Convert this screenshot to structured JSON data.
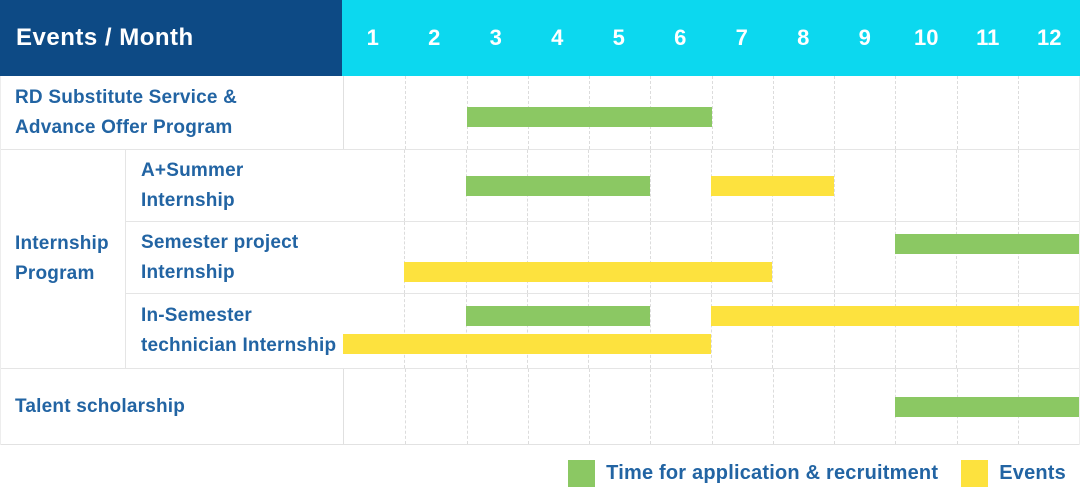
{
  "header": {
    "title": "Events / Month",
    "months": [
      "1",
      "2",
      "3",
      "4",
      "5",
      "6",
      "7",
      "8",
      "9",
      "10",
      "11",
      "12"
    ]
  },
  "colors": {
    "header_navy": "#0d4a85",
    "header_cyan": "#0cd8ef",
    "recruitment_green": "#8bc863",
    "events_yellow": "#fde23e",
    "label_blue": "#2264a3"
  },
  "chart_data": {
    "type": "bar",
    "variant": "gantt",
    "title": "Events / Month",
    "x_categories": [
      "1",
      "2",
      "3",
      "4",
      "5",
      "6",
      "7",
      "8",
      "9",
      "10",
      "11",
      "12"
    ],
    "x_unit": "month",
    "x_range": [
      1,
      12
    ],
    "grid": "dashed-vertical",
    "legend_position": "bottom-right",
    "group": {
      "label": "Internship Program",
      "label_lines": [
        "Internship",
        "Program"
      ],
      "row_keys": [
        "a_summer",
        "semester_project",
        "in_semester"
      ]
    },
    "rows": [
      {
        "key": "rd",
        "label": "RD Substitute Service & Advance Offer Program",
        "label_lines": [
          "RD Substitute Service &",
          "Advance Offer Program"
        ],
        "bars": [
          {
            "series": "recruitment",
            "start_month": 3,
            "end_month": 6,
            "lane": "center"
          }
        ]
      },
      {
        "key": "a_summer",
        "group": "Internship Program",
        "label": "A+Summer Internship",
        "label_lines": [
          "A+Summer",
          "Internship"
        ],
        "bars": [
          {
            "series": "recruitment",
            "start_month": 3,
            "end_month": 5,
            "lane": "center"
          },
          {
            "series": "events",
            "start_month": 7,
            "end_month": 8,
            "lane": "center"
          }
        ]
      },
      {
        "key": "semester_project",
        "group": "Internship Program",
        "label": "Semester project Internship",
        "label_lines": [
          "Semester project",
          "Internship"
        ],
        "bars": [
          {
            "series": "recruitment",
            "start_month": 10,
            "end_month": 12,
            "lane": "top"
          },
          {
            "series": "events",
            "start_month": 2,
            "end_month": 7,
            "lane": "bottom"
          }
        ]
      },
      {
        "key": "in_semester",
        "group": "Internship Program",
        "label": "In-Semester technician Internship",
        "label_lines": [
          "In-Semester",
          "technician Internship"
        ],
        "bars": [
          {
            "series": "recruitment",
            "start_month": 3,
            "end_month": 5,
            "lane": "top"
          },
          {
            "series": "events",
            "start_month": 7,
            "end_month": 12,
            "lane": "top"
          },
          {
            "series": "events",
            "start_month": 1,
            "end_month": 6,
            "lane": "bottom"
          }
        ]
      },
      {
        "key": "talent",
        "label": "Talent scholarship",
        "label_lines": [
          "Talent scholarship"
        ],
        "bars": [
          {
            "series": "recruitment",
            "start_month": 10,
            "end_month": 12,
            "lane": "center"
          }
        ]
      }
    ],
    "series": [
      {
        "name": "recruitment",
        "label": "Time for application & recruitment",
        "color": "#8bc863"
      },
      {
        "name": "events",
        "label": "Events",
        "color": "#fde23e"
      }
    ]
  }
}
